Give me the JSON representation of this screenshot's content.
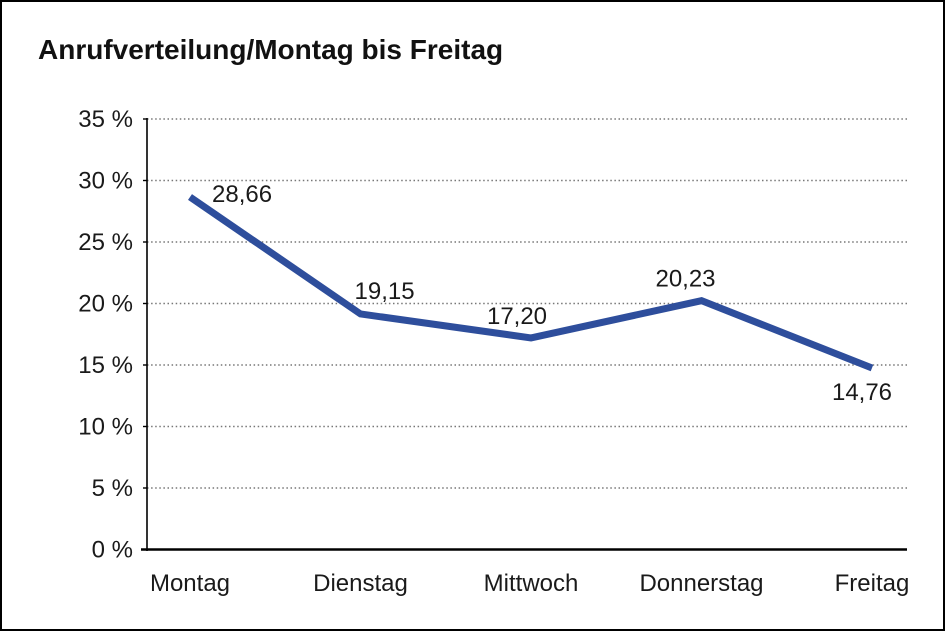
{
  "window": {
    "background": "#ffffff",
    "border_color": "#000000"
  },
  "title": "Anrufverteilung/Montag bis Freitag",
  "chart_data": {
    "type": "line",
    "title": "Anrufverteilung/Montag bis Freitag",
    "categories": [
      "Montag",
      "Dienstag",
      "Mittwoch",
      "Donnerstag",
      "Freitag"
    ],
    "series": [
      {
        "name": "Anrufverteilung",
        "values": [
          28.66,
          19.15,
          17.2,
          20.23,
          14.76
        ],
        "value_labels": [
          "28,66",
          "19,15",
          "17,20",
          "20,23",
          "14,76"
        ],
        "color": "#2E4E9C"
      }
    ],
    "xlabel": "",
    "ylabel": "",
    "ylim": [
      0,
      35
    ],
    "ytick_step": 5,
    "ytick_labels": [
      "0 %",
      "5 %",
      "10 %",
      "15 %",
      "20 %",
      "25 %",
      "30 %",
      "35 %"
    ],
    "grid": "horizontal-dotted",
    "gridline_color": "#777777",
    "axis_color": "#000000",
    "legend": "none",
    "data_labels": "on"
  }
}
